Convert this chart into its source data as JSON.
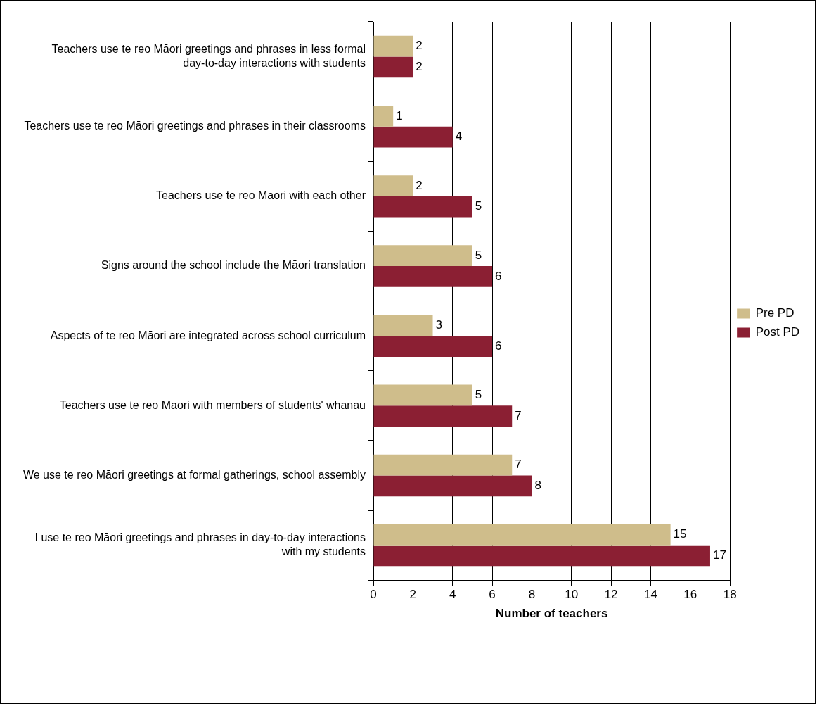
{
  "chart_data": {
    "type": "bar",
    "orientation": "horizontal",
    "xlabel": "Number of teachers",
    "categories": [
      "Teachers use te reo Māori greetings and phrases in less formal day-to-day interactions with students",
      "Teachers use te reo Māori greetings and phrases in their classrooms",
      "Teachers use te reo Māori with each other",
      "Signs around the school include the Māori translation",
      "Aspects of te reo Māori are integrated across school curriculum",
      "Teachers use te reo Māori with members of students' whānau",
      "We use te reo Māori greetings at formal gatherings, school assembly",
      "I use te reo Māori greetings and phrases in day-to-day interactions with my students"
    ],
    "series": [
      {
        "name": "Pre PD",
        "color": "#cfbd8b",
        "values": [
          2,
          1,
          2,
          5,
          3,
          5,
          7,
          15
        ]
      },
      {
        "name": "Post PD",
        "color": "#8b1f33",
        "values": [
          2,
          4,
          5,
          6,
          6,
          7,
          8,
          17
        ]
      }
    ],
    "xlim": [
      0,
      18
    ],
    "xticks": [
      0,
      2,
      4,
      6,
      8,
      10,
      12,
      14,
      16,
      18
    ],
    "grid": "x",
    "legend": "right",
    "data_labels": true
  }
}
